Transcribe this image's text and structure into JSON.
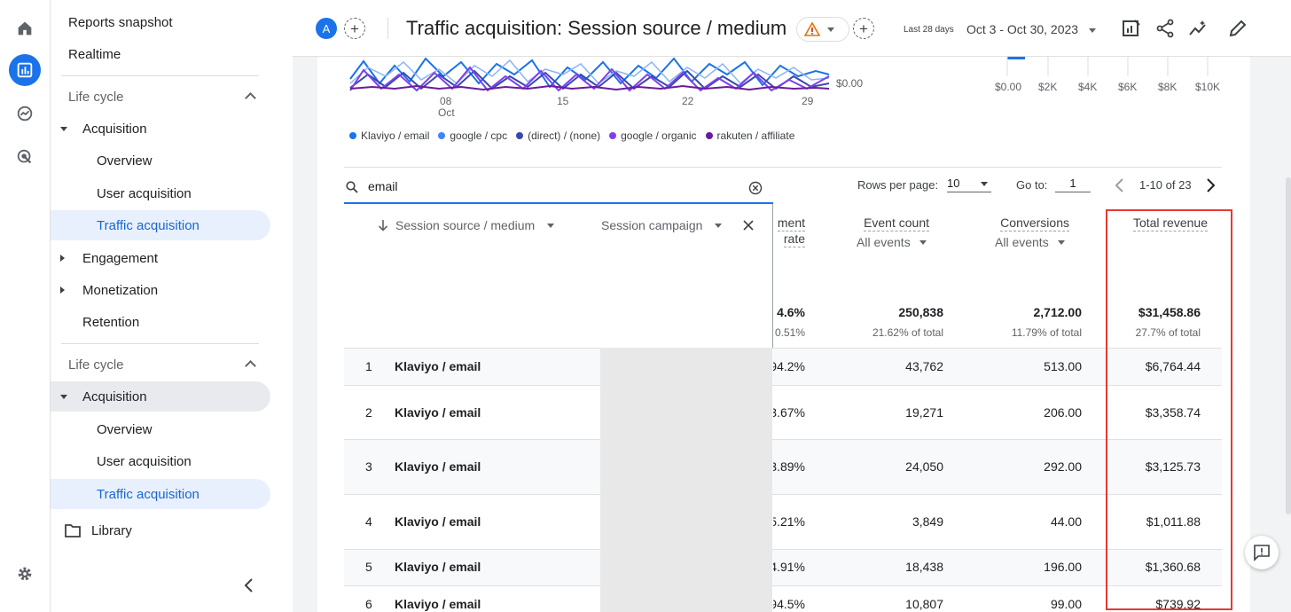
{
  "nav": {
    "reports_snapshot": "Reports snapshot",
    "realtime": "Realtime",
    "lifecycle_1": {
      "title": "Life cycle",
      "acquisition": "Acquisition",
      "overview": "Overview",
      "user_acquisition": "User acquisition",
      "traffic_acquisition": "Traffic acquisition",
      "engagement": "Engagement",
      "monetization": "Monetization",
      "retention": "Retention"
    },
    "lifecycle_2": {
      "title": "Life cycle",
      "acquisition": "Acquisition",
      "overview": "Overview",
      "user_acquisition": "User acquisition",
      "traffic_acquisition": "Traffic acquisition"
    },
    "library": "Library"
  },
  "header": {
    "avatar": "A",
    "title": "Traffic acquisition: Session source / medium",
    "date_label": "Last 28 days",
    "date_range": "Oct 3 - Oct 30, 2023"
  },
  "chart": {
    "x_ticks": [
      "08",
      "15",
      "22",
      "29"
    ],
    "x_month": "Oct",
    "y_label": "$0.00",
    "bar_ticks": [
      "$0.00",
      "$2K",
      "$4K",
      "$6K",
      "$8K",
      "$10K"
    ],
    "legend": [
      {
        "name": "Klaviyo / email",
        "color": "#1a73e8"
      },
      {
        "name": "google / cpc",
        "color": "#4285f4"
      },
      {
        "name": "(direct) / (none)",
        "color": "#3949ab"
      },
      {
        "name": "google / organic",
        "color": "#7e3ff2"
      },
      {
        "name": "rakuten / affiliate",
        "color": "#6a1b9a"
      }
    ]
  },
  "table": {
    "search_value": "email",
    "rows_per_page_label": "Rows per page:",
    "rows_per_page": "10",
    "goto_label": "Go to:",
    "goto_value": "1",
    "pager": "1-10 of 23",
    "dim1": "Session source / medium",
    "dim2": "Session campaign",
    "partial_header": "ment",
    "partial_header2": "rate",
    "columns": {
      "event_count": {
        "title": "Event count",
        "sub": "All events",
        "total": "250,838",
        "pct": "21.62% of total"
      },
      "conversions": {
        "title": "Conversions",
        "sub": "All events",
        "total": "2,712.00",
        "pct": "11.79% of total"
      },
      "revenue": {
        "title": "Total revenue",
        "total": "$31,458.86",
        "pct": "27.7% of total"
      }
    },
    "partial_total": "4.6%",
    "partial_pct": "0.51%",
    "rows": [
      {
        "n": "1",
        "source": "Klaviyo / email",
        "rate": "94.2%",
        "events": "43,762",
        "conv": "513.00",
        "rev": "$6,764.44"
      },
      {
        "n": "2",
        "source": "Klaviyo / email",
        "rate": "3.67%",
        "events": "19,271",
        "conv": "206.00",
        "rev": "$3,358.74"
      },
      {
        "n": "3",
        "source": "Klaviyo / email",
        "rate": "3.89%",
        "events": "24,050",
        "conv": "292.00",
        "rev": "$3,125.73"
      },
      {
        "n": "4",
        "source": "Klaviyo / email",
        "rate": "5.21%",
        "events": "3,849",
        "conv": "44.00",
        "rev": "$1,011.88"
      },
      {
        "n": "5",
        "source": "Klaviyo / email",
        "rate": "4.91%",
        "events": "18,438",
        "conv": "196.00",
        "rev": "$1,360.68"
      },
      {
        "n": "6",
        "source": "Klaviyo / email",
        "rate": "94.5%",
        "events": "10,807",
        "conv": "99.00",
        "rev": "$739.92"
      }
    ]
  }
}
